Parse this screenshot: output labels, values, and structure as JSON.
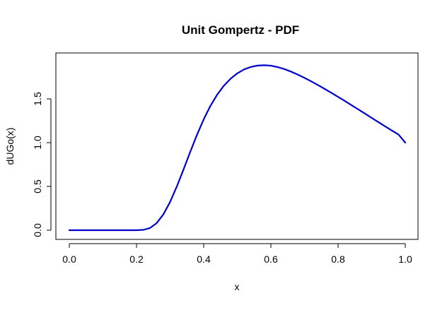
{
  "chart_data": {
    "type": "line",
    "title": "Unit Gompertz - PDF",
    "xlabel": "x",
    "ylabel": "dUGo(x)",
    "xlim": [
      0,
      1
    ],
    "ylim": [
      0,
      1.9
    ],
    "x_ticks": [
      0.0,
      0.2,
      0.4,
      0.6,
      0.8,
      1.0
    ],
    "x_tick_labels": [
      "0.0",
      "0.2",
      "0.4",
      "0.6",
      "0.8",
      "1.0"
    ],
    "y_ticks": [
      0.0,
      0.5,
      1.0,
      1.5
    ],
    "y_tick_labels": [
      "0.0",
      "0.5",
      "1.0",
      "1.5"
    ],
    "grid": false,
    "legend": "none",
    "series": [
      {
        "color": "#0000CD",
        "x": [
          0.0,
          0.05,
          0.1,
          0.15,
          0.2,
          0.22,
          0.24,
          0.26,
          0.28,
          0.3,
          0.32,
          0.34,
          0.36,
          0.38,
          0.4,
          0.42,
          0.44,
          0.46,
          0.48,
          0.5,
          0.52,
          0.54,
          0.56,
          0.58,
          0.6,
          0.62,
          0.64,
          0.66,
          0.68,
          0.7,
          0.72,
          0.74,
          0.76,
          0.78,
          0.8,
          0.82,
          0.84,
          0.86,
          0.88,
          0.9,
          0.92,
          0.94,
          0.96,
          0.98,
          1.0
        ],
        "y": [
          0.0,
          0.0,
          0.0,
          0.0,
          0.0,
          0.004,
          0.025,
          0.081,
          0.181,
          0.323,
          0.499,
          0.694,
          0.895,
          1.089,
          1.266,
          1.42,
          1.547,
          1.65,
          1.73,
          1.791,
          1.836,
          1.864,
          1.88,
          1.884,
          1.879,
          1.863,
          1.84,
          1.811,
          1.777,
          1.74,
          1.7,
          1.658,
          1.614,
          1.569,
          1.523,
          1.476,
          1.428,
          1.38,
          1.332,
          1.283,
          1.234,
          1.186,
          1.139,
          1.092,
          1.0
        ]
      }
    ]
  }
}
